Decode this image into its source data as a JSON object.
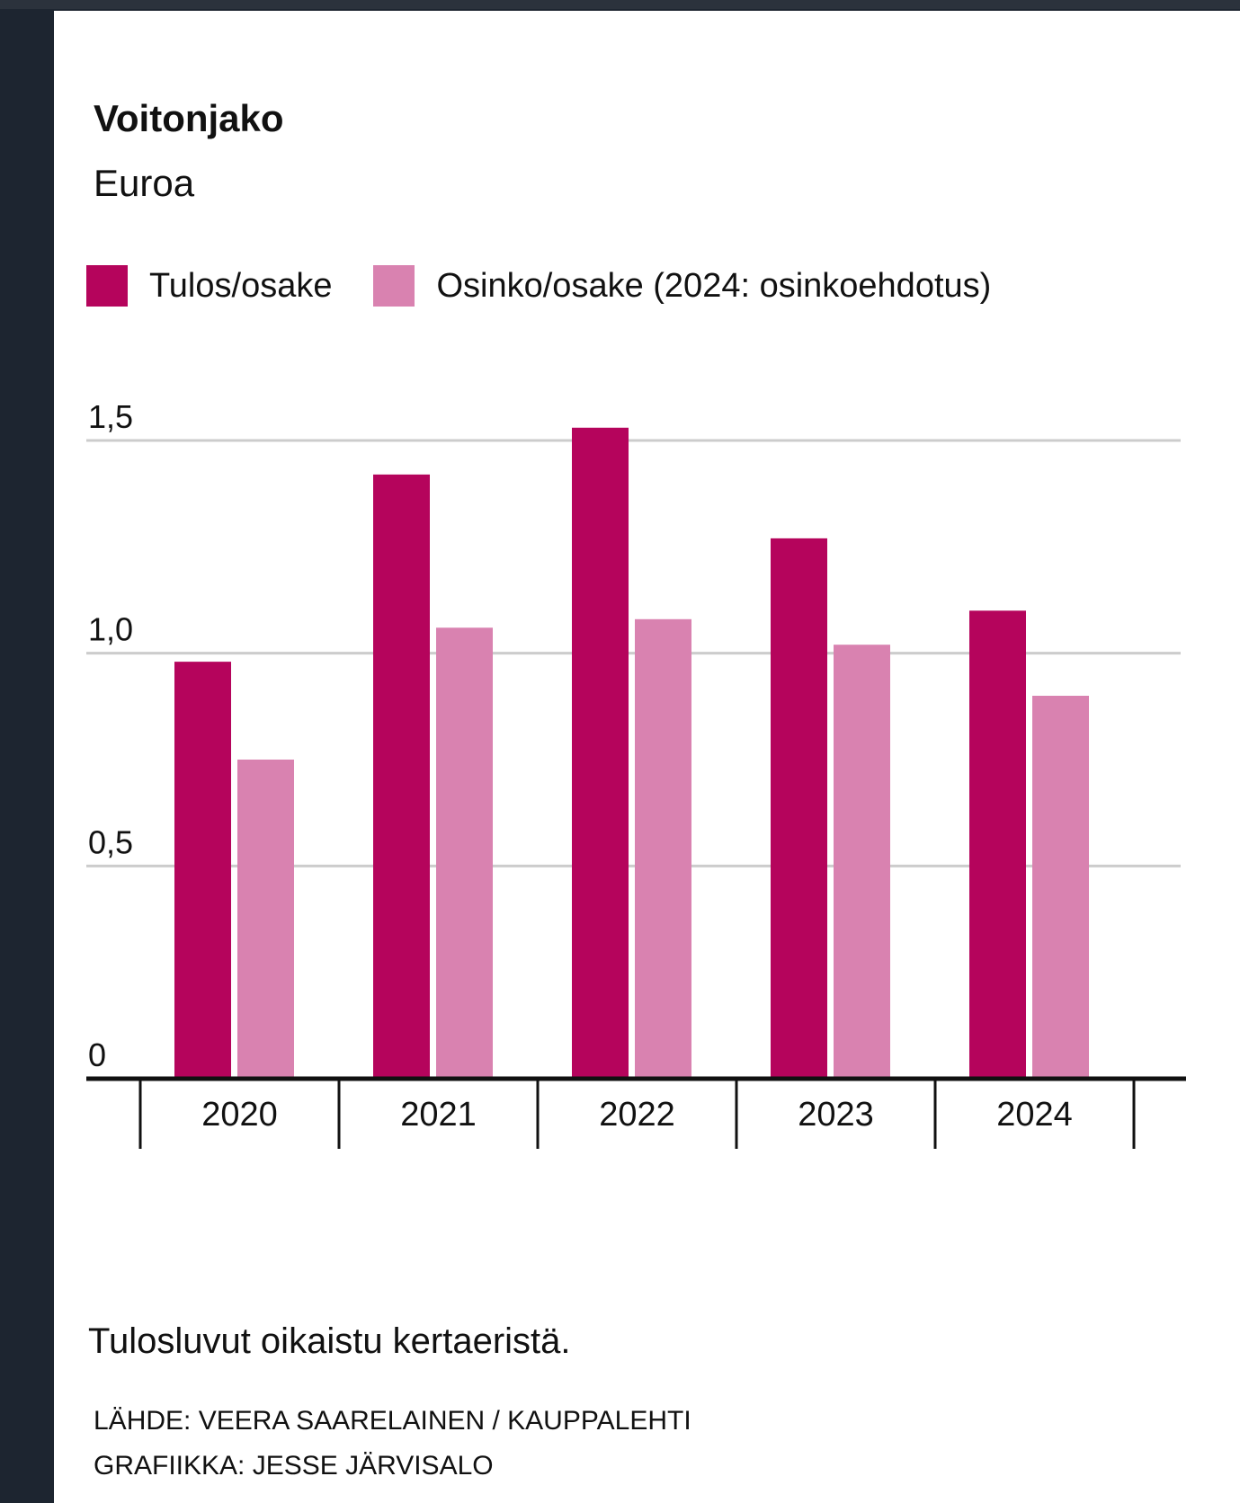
{
  "chart_data": {
    "type": "bar",
    "title": "Voitonjako",
    "subtitle": "Euroa",
    "categories": [
      "2020",
      "2021",
      "2022",
      "2023",
      "2024"
    ],
    "series": [
      {
        "name": "Tulos/osake",
        "color": "#b5045c",
        "values": [
          0.98,
          1.42,
          1.53,
          1.27,
          1.1
        ]
      },
      {
        "name": "Osinko/osake (2024: osinkoehdotus)",
        "color": "#d982b0",
        "values": [
          0.75,
          1.06,
          1.08,
          1.02,
          0.9
        ]
      }
    ],
    "yticks": [
      "0",
      "0,5",
      "1,0",
      "1,5"
    ],
    "ytick_values": [
      0,
      0.5,
      1.0,
      1.5
    ],
    "ylim": [
      0,
      1.55
    ],
    "grid": true,
    "legend_position": "top-left"
  },
  "footer": {
    "note": "Tulosluvut oikaistu kertaeristä.",
    "source": "LÄHDE: VEERA SAARELAINEN / KAUPPALEHTI",
    "graphics": "GRAFIIKKA: JESSE JÄRVISALO"
  }
}
